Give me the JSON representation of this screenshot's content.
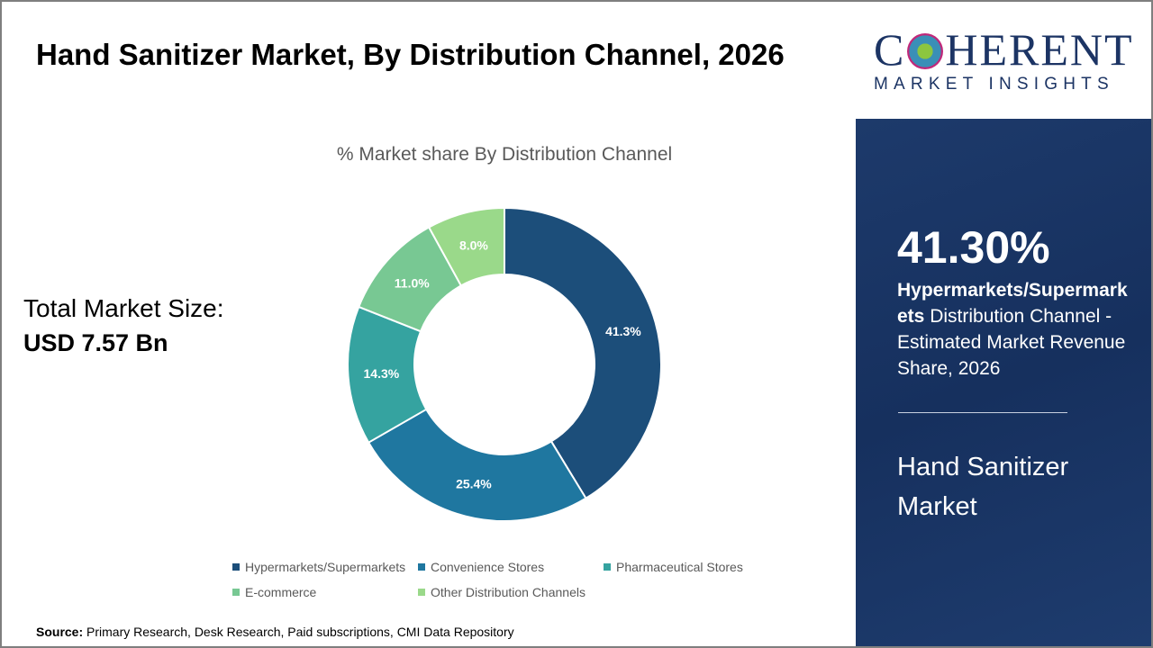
{
  "title": "Hand Sanitizer Market, By Distribution Channel, 2026",
  "total_label": "Total Market Size:",
  "total_value": "USD 7.57 Bn",
  "source_label": "Source:",
  "source_text": "Primary Research, Desk Research, Paid subscriptions, CMI Data Repository",
  "logo": {
    "brand": "COHERENT",
    "tagline": "MARKET INSIGHTS"
  },
  "side": {
    "highlight": "41.30%",
    "desc_bold": "Hypermarkets/Supermarkets",
    "desc_rest": " Distribution Channel - Estimated Market Revenue Share, 2026",
    "market": "Hand Sanitizer Market"
  },
  "chart_data": {
    "type": "pie",
    "donut": true,
    "title": "% Market share By Distribution Channel",
    "categories": [
      "Hypermarkets/Supermarkets",
      "Convenience Stores",
      "Pharmaceutical Stores",
      "E-commerce",
      "Other Distribution Channels"
    ],
    "values": [
      41.3,
      25.4,
      14.3,
      11.0,
      8.0
    ],
    "labels": [
      "41.3%",
      "25.4%",
      "14.3%",
      "11.0%",
      "8.0%"
    ],
    "colors": [
      "#1c4e7a",
      "#1f77a0",
      "#35a3a0",
      "#78c893",
      "#9ad98a"
    ],
    "legend": "bottom"
  }
}
